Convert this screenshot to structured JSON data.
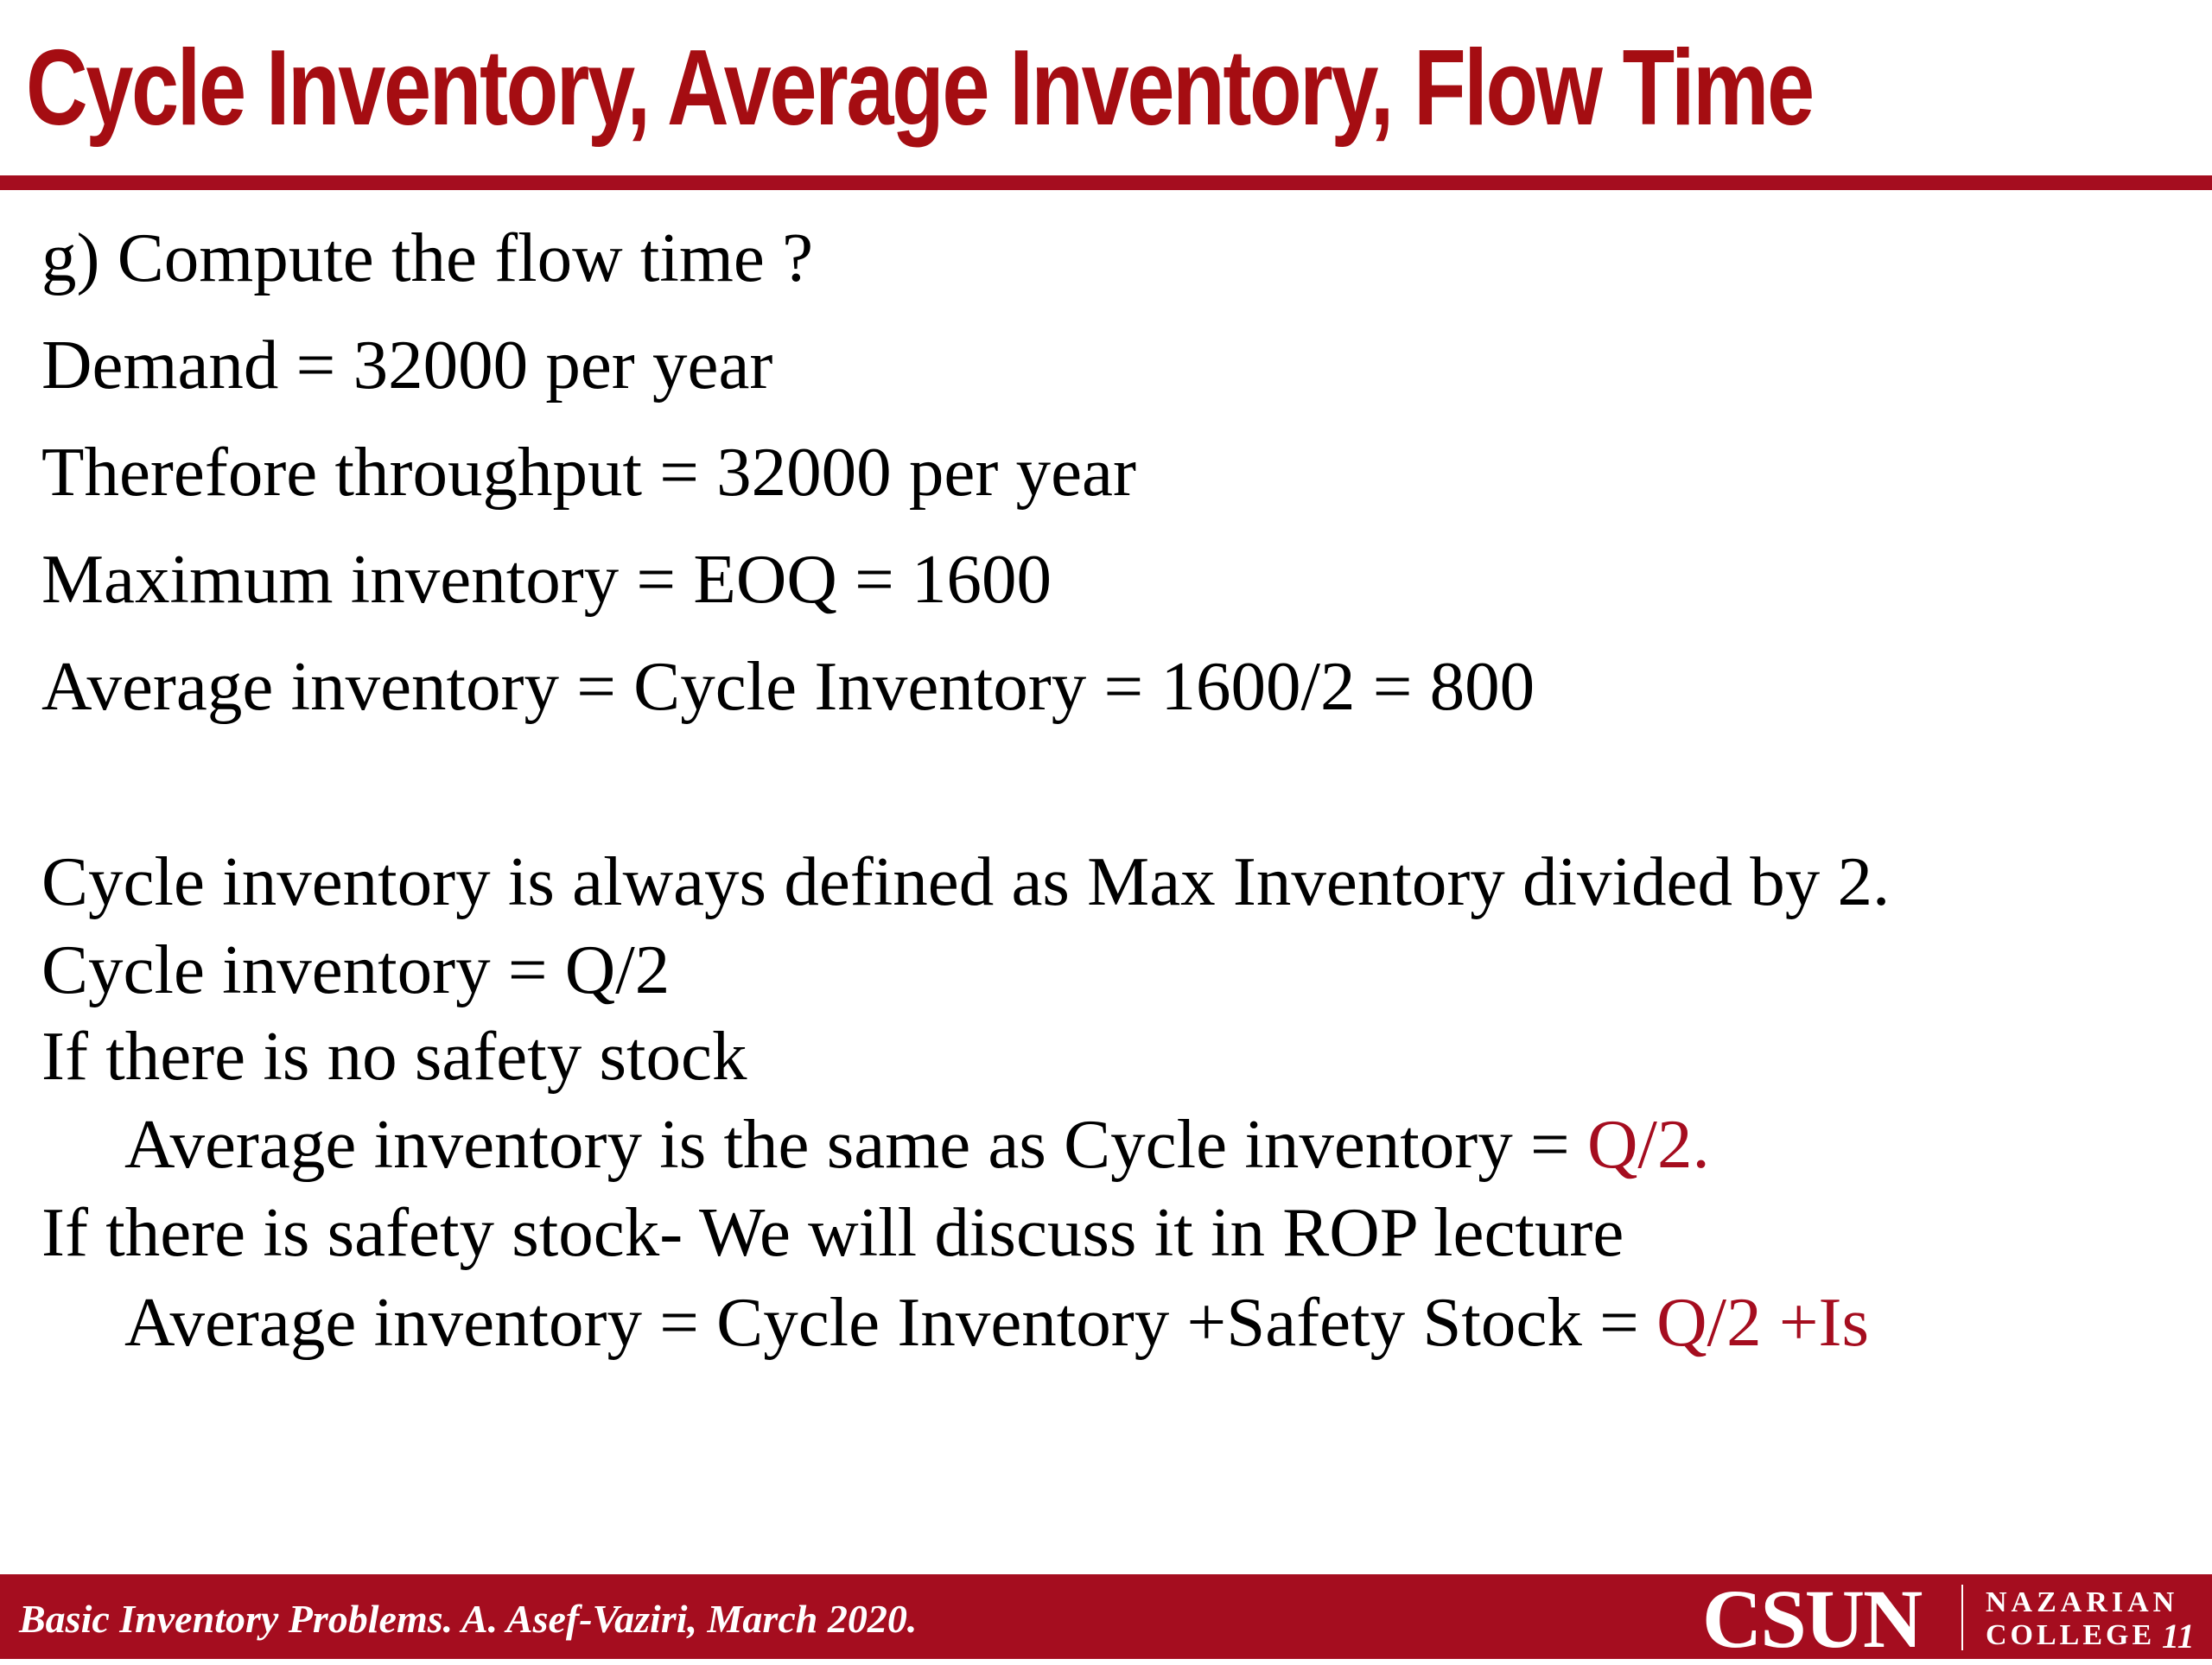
{
  "slide": {
    "title": "Cycle Inventory, Average Inventory, Flow Time",
    "slide_number": "11"
  },
  "body": {
    "question": "g) Compute the flow time ?",
    "demand": "Demand = 32000 per year",
    "throughput": "Therefore throughput = 32000 per year",
    "max_inventory": "Maximum inventory = EOQ =  1600",
    "avg_inventory": "Average inventory = Cycle Inventory = 1600/2 = 800",
    "cycle_definition": "Cycle inventory is always defined as Max Inventory divided by 2.",
    "cycle_formula": "Cycle inventory = Q/2",
    "no_safety_stock": "If there is no safety stock",
    "no_safety_avg_text": "Average inventory is the same as Cycle inventory = ",
    "no_safety_avg_value": "Q/2.",
    "with_safety_stock": "If there is safety stock- We will discuss it in ROP lecture",
    "with_safety_avg_text": "Average inventory = Cycle Inventory +Safety Stock = ",
    "with_safety_avg_value": "Q/2 +Is"
  },
  "footer": {
    "citation": "Basic Inventory Problems. A. Asef-Vaziri, March 2020.",
    "logo_main": "CSUN",
    "logo_line1": "NAZARIAN",
    "logo_line2": "COLLEGE"
  },
  "colors": {
    "brand_red": "#a50d1f",
    "text": "#000000",
    "background": "#ffffff"
  }
}
